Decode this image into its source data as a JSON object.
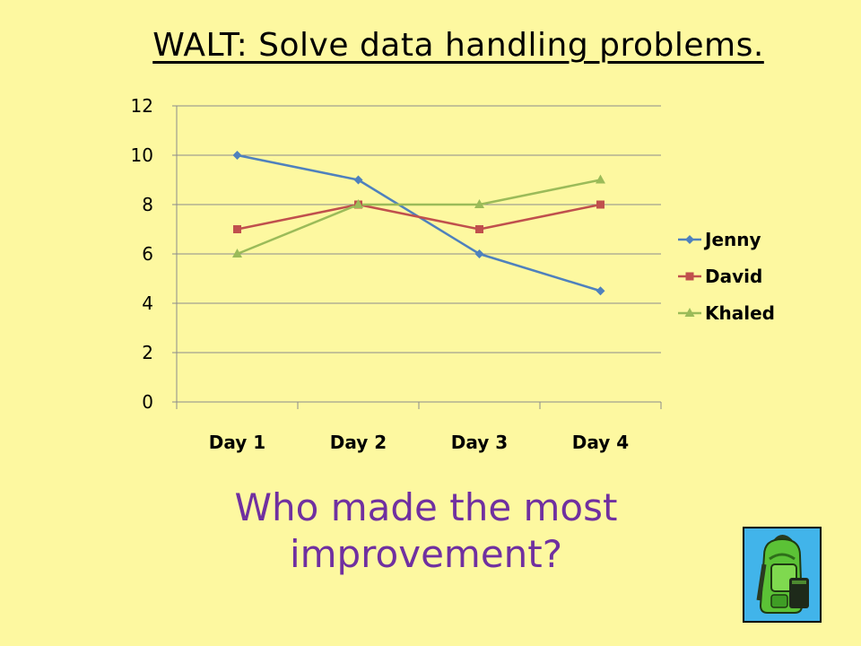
{
  "slide": {
    "title": "WALT: Solve data handling problems.",
    "question": "Who made the most improvement?"
  },
  "icons": {
    "backpack": "backpack-icon"
  },
  "chart_data": {
    "type": "line",
    "categories": [
      "Day 1",
      "Day 2",
      "Day 3",
      "Day 4"
    ],
    "ylim": [
      0,
      12
    ],
    "yticks": [
      0,
      2,
      4,
      6,
      8,
      10,
      12
    ],
    "grid": true,
    "legend_position": "right",
    "series": [
      {
        "name": "Jenny",
        "values": [
          10,
          9,
          6,
          4.5
        ],
        "color": "#4F81BD",
        "marker": "diamond"
      },
      {
        "name": "David",
        "values": [
          7,
          8,
          7,
          8
        ],
        "color": "#C0504D",
        "marker": "square"
      },
      {
        "name": "Khaled",
        "values": [
          6,
          8,
          8,
          9
        ],
        "color": "#9BBB59",
        "marker": "triangle"
      }
    ]
  }
}
